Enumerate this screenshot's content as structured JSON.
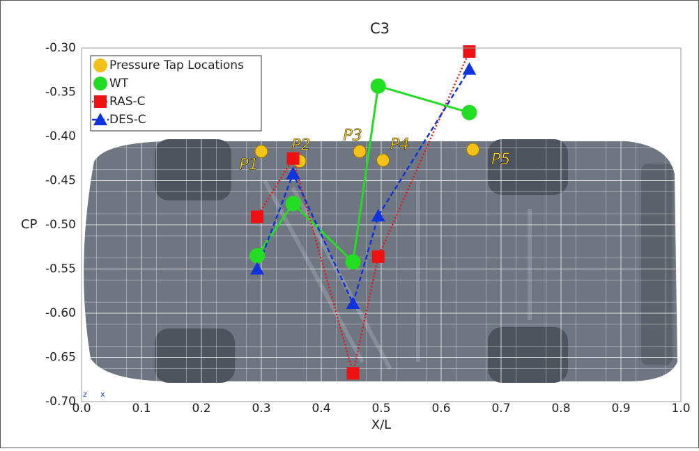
{
  "chart_data": {
    "type": "line",
    "title": "C3",
    "x_label": "X/L",
    "y_label": "CP",
    "xlim": [
      0,
      1
    ],
    "ylim": [
      -0.7,
      -0.3
    ],
    "xticks": [
      {
        "value": 0,
        "label": "0.0"
      },
      0.1,
      0.2,
      0.3,
      0.4,
      0.5,
      0.6,
      0.7,
      0.8,
      0.9,
      {
        "value": 1,
        "label": "1.0"
      }
    ],
    "yticks": [
      {
        "value": -0.7,
        "label": "-0.70"
      },
      {
        "value": -0.65,
        "label": "-0.65"
      },
      {
        "value": -0.6,
        "label": "-0.60"
      },
      {
        "value": -0.55,
        "label": "-0.55"
      },
      {
        "value": -0.5,
        "label": "-0.50"
      },
      {
        "value": -0.45,
        "label": "-0.45"
      },
      {
        "value": -0.4,
        "label": "-0.40"
      },
      {
        "value": -0.35,
        "label": "-0.35"
      },
      {
        "value": -0.3,
        "label": "-0.30"
      }
    ],
    "grid": true,
    "legend": "upper left",
    "orientation_axes": [
      "z",
      "x"
    ],
    "series": [
      {
        "name": "Pressure Tap Locations",
        "color": "#f2c21b",
        "marker": "circle",
        "line_style": "none",
        "x": [
          0.3,
          0.364,
          0.464,
          0.503,
          0.653
        ],
        "values": [
          -0.417,
          -0.428,
          -0.417,
          -0.427,
          -0.415
        ],
        "point_labels": [
          "P1",
          "P2",
          "P3",
          "P4",
          "P5"
        ]
      },
      {
        "name": "WT",
        "color": "#22dd22",
        "marker": "circle",
        "line_style": "solid",
        "x": [
          0.293,
          0.353,
          0.453,
          0.495,
          0.647
        ],
        "values": [
          -0.535,
          -0.476,
          -0.542,
          -0.343,
          -0.373
        ]
      },
      {
        "name": "RAS-C",
        "color": "#ee1111",
        "marker": "square",
        "line_style": "dotted",
        "x": [
          0.293,
          0.353,
          0.453,
          0.495,
          0.647
        ],
        "values": [
          -0.491,
          -0.425,
          -0.668,
          -0.536,
          -0.304
        ]
      },
      {
        "name": "DES-C",
        "color": "#1133dd",
        "marker": "triangle",
        "line_style": "dashed",
        "x": [
          0.293,
          0.353,
          0.453,
          0.495,
          0.647
        ],
        "values": [
          -0.55,
          -0.442,
          -0.589,
          -0.49,
          -0.324
        ]
      }
    ]
  }
}
